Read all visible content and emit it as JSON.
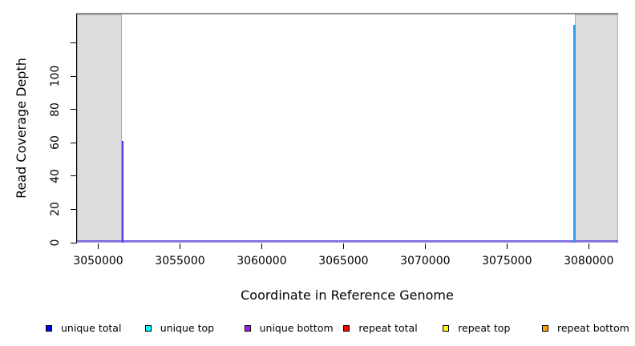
{
  "figure": {
    "background": "#FFFFFF",
    "frame_top_color": "#8E8E8E",
    "axis_color": "#000000",
    "flank_fill": "#DCDCDC",
    "flank_border": "#ABABAB"
  },
  "chart_data": {
    "type": "line",
    "title": "",
    "xlabel": "Coordinate in Reference Genome",
    "ylabel": "Read Coverage Depth",
    "xlim": [
      3048700,
      3081800
    ],
    "ylim": [
      0,
      137
    ],
    "grid": false,
    "legend_position": "bottom",
    "x_ticks": [
      {
        "value": 3050000,
        "label": "3050000"
      },
      {
        "value": 3055000,
        "label": "3055000"
      },
      {
        "value": 3060000,
        "label": "3060000"
      },
      {
        "value": 3065000,
        "label": "3065000"
      },
      {
        "value": 3070000,
        "label": "3070000"
      },
      {
        "value": 3075000,
        "label": "3075000"
      },
      {
        "value": 3080000,
        "label": "3080000"
      }
    ],
    "y_ticks": [
      {
        "value": 0,
        "label": "0"
      },
      {
        "value": 20,
        "label": "20"
      },
      {
        "value": 40,
        "label": "40"
      },
      {
        "value": 60,
        "label": "60"
      },
      {
        "value": 80,
        "label": "80"
      },
      {
        "value": 100,
        "label": "100"
      },
      {
        "value": 120,
        "label": ""
      }
    ],
    "shaded_regions": [
      {
        "x0": 3048700,
        "x1": 3051460
      },
      {
        "x0": 3079150,
        "x1": 3081800
      }
    ],
    "baseline": {
      "value": 0,
      "rendered_color": "#7365DA"
    },
    "spikes": [
      {
        "x": 3051500,
        "depth": 61,
        "series": [
          "unique total",
          "unique bottom"
        ],
        "rendered_color": "#5C31EE"
      },
      {
        "x": 3079120,
        "depth": 131,
        "series": [
          "unique total",
          "unique top"
        ],
        "rendered_color": "#2B9EF0"
      }
    ]
  },
  "legend": {
    "items": [
      {
        "label": "unique total",
        "color": "#0000FF"
      },
      {
        "label": "unique top",
        "color": "#00FFFF"
      },
      {
        "label": "unique bottom",
        "color": "#A020F0"
      },
      {
        "label": "repeat total",
        "color": "#FF0000"
      },
      {
        "label": "repeat top",
        "color": "#FFFF00"
      },
      {
        "label": "repeat bottom",
        "color": "#FFA500"
      }
    ]
  }
}
